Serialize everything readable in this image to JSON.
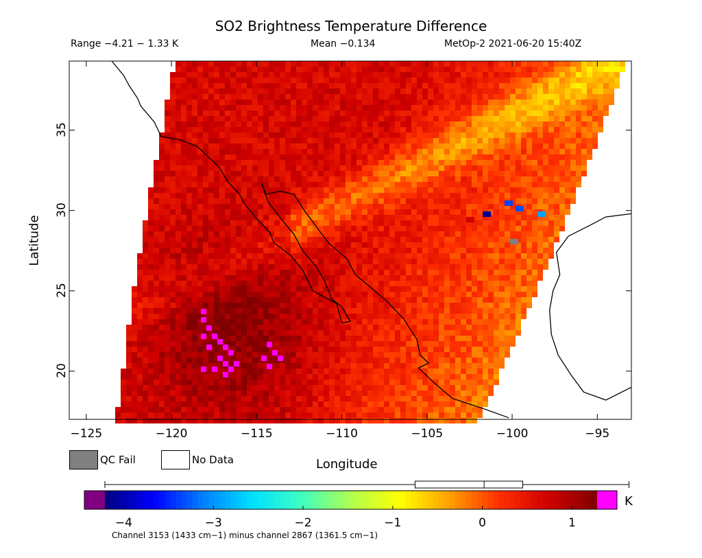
{
  "header": {
    "title": "SO2 Brightness Temperature Difference",
    "range": "Range −4.21 − 1.33 K",
    "mean": "Mean −0.134",
    "satellite_time": "MetOp-2 2021-06-20 15:40Z"
  },
  "axes": {
    "xlabel": "Longitude",
    "ylabel": "Latitude",
    "xticks": [
      "−125",
      "−120",
      "−115",
      "−110",
      "−105",
      "−100",
      "−95"
    ],
    "xtick_values": [
      -125,
      -120,
      -115,
      -110,
      -105,
      -100,
      -95
    ],
    "yticks": [
      "20",
      "25",
      "30",
      "35"
    ],
    "ytick_values": [
      20,
      25,
      30,
      35
    ],
    "xlim": [
      -126,
      -93
    ],
    "ylim": [
      17,
      39.3
    ]
  },
  "legend": {
    "qc_fail": "QC Fail",
    "no_data": "No Data",
    "qc_fail_color": "#808080",
    "no_data_color": "#ffffff"
  },
  "colorbar": {
    "unit": "K",
    "ticks": [
      "−4",
      "−3",
      "−2",
      "−1",
      "0",
      "1"
    ],
    "tick_values": [
      -4,
      -3,
      -2,
      -1,
      0,
      1
    ],
    "vmin": -4.21,
    "vmax": 1.33,
    "underflow_color": "#800080",
    "overflow_color": "#ff00ff",
    "boxplot": {
      "min": -4.21,
      "q1": -0.75,
      "median": 0.02,
      "q3": 0.45,
      "max": 1.33
    },
    "caption": "Channel 3153 (1433 cm−1) minus channel 2867 (1361.5 cm−1)"
  },
  "colors": {
    "scale": [
      "#00007f",
      "#0000ff",
      "#0080ff",
      "#00e0ff",
      "#40ffc0",
      "#b0ff50",
      "#ffff00",
      "#ffa000",
      "#ff3000",
      "#d00000",
      "#7f0000"
    ],
    "coastline": "#000000"
  }
}
